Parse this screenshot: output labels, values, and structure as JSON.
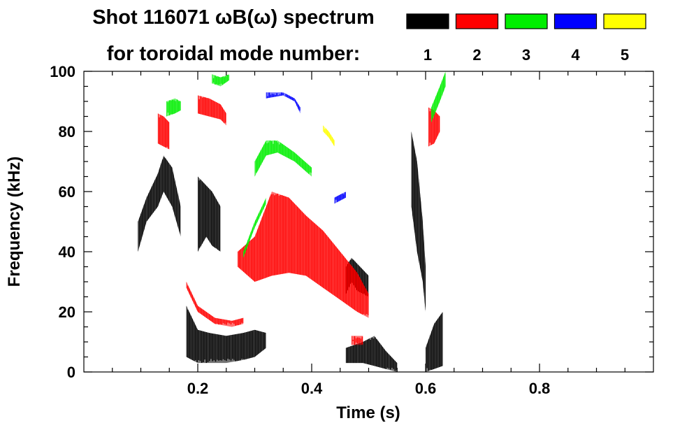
{
  "chart_data": {
    "type": "heatmap",
    "title_line1": "Shot 116071 ωB(ω) spectrum",
    "title_line2": "for toroidal mode number:",
    "xlabel": "Time (s)",
    "ylabel": "Frequency (kHz)",
    "xlim": [
      0.0,
      1.0
    ],
    "ylim": [
      0,
      100
    ],
    "x_ticks": [
      0.2,
      0.4,
      0.6,
      0.8
    ],
    "x_tick_labels": [
      "0.2",
      "0.4",
      "0.6",
      "0.8"
    ],
    "y_ticks": [
      0,
      20,
      40,
      60,
      80,
      100
    ],
    "y_tick_labels": [
      "0",
      "20",
      "40",
      "60",
      "80",
      "100"
    ],
    "x_minor_step": 0.05,
    "y_minor_step": 5,
    "legend": [
      {
        "mode": "1",
        "color": "#000000"
      },
      {
        "mode": "2",
        "color": "#ff0000"
      },
      {
        "mode": "3",
        "color": "#00ee00"
      },
      {
        "mode": "4",
        "color": "#0000ff"
      },
      {
        "mode": "5",
        "color": "#ffff00"
      }
    ],
    "series": [
      {
        "mode": "1",
        "color": "#000000",
        "bands": [
          {
            "t": [
              0.095,
              0.11,
              0.13,
              0.14,
              0.155,
              0.17
            ],
            "f_lo": [
              40,
              50,
              55,
              60,
              55,
              45
            ],
            "f_hi": [
              50,
              58,
              66,
              72,
              68,
              55
            ]
          },
          {
            "t": [
              0.2,
              0.215,
              0.225,
              0.24
            ],
            "f_lo": [
              40,
              45,
              42,
              40
            ],
            "f_hi": [
              65,
              62,
              60,
              55
            ]
          },
          {
            "t": [
              0.18,
              0.2,
              0.22,
              0.25,
              0.28,
              0.3,
              0.32
            ],
            "f_lo": [
              5,
              3,
              3,
              3,
              4,
              5,
              8
            ],
            "f_hi": [
              22,
              14,
              13,
              12,
              13,
              14,
              13
            ]
          },
          {
            "t": [
              0.46,
              0.47,
              0.48,
              0.5
            ],
            "f_lo": [
              26,
              30,
              27,
              25
            ],
            "f_hi": [
              35,
              38,
              36,
              32
            ]
          },
          {
            "t": [
              0.46,
              0.49,
              0.51,
              0.53,
              0.55
            ],
            "f_lo": [
              3,
              3,
              2,
              1,
              0
            ],
            "f_hi": [
              8,
              10,
              12,
              7,
              3
            ]
          },
          {
            "t": [
              0.575,
              0.585,
              0.595,
              0.6
            ],
            "f_lo": [
              55,
              40,
              30,
              20
            ],
            "f_hi": [
              80,
              70,
              50,
              35
            ]
          },
          {
            "t": [
              0.6,
              0.615,
              0.63
            ],
            "f_lo": [
              0,
              1,
              2
            ],
            "f_hi": [
              8,
              16,
              20
            ]
          }
        ]
      },
      {
        "mode": "2",
        "color": "#ff0000",
        "bands": [
          {
            "t": [
              0.13,
              0.14,
              0.15
            ],
            "f_lo": [
              76,
              75,
              74
            ],
            "f_hi": [
              86,
              85,
              83
            ]
          },
          {
            "t": [
              0.2,
              0.22,
              0.24,
              0.25
            ],
            "f_lo": [
              86,
              85,
              84,
              82
            ],
            "f_hi": [
              92,
              91,
              89,
              86
            ]
          },
          {
            "t": [
              0.18,
              0.2,
              0.23,
              0.26,
              0.28
            ],
            "f_lo": [
              28,
              20,
              16,
              15,
              16
            ],
            "f_hi": [
              30,
              22,
              18,
              17,
              18
            ]
          },
          {
            "t": [
              0.27,
              0.3,
              0.33,
              0.36,
              0.39,
              0.42,
              0.45,
              0.48,
              0.5
            ],
            "f_lo": [
              35,
              30,
              32,
              33,
              32,
              28,
              24,
              20,
              18
            ],
            "f_hi": [
              40,
              45,
              60,
              58,
              52,
              47,
              40,
              33,
              26
            ]
          },
          {
            "t": [
              0.47,
              0.48,
              0.49
            ],
            "f_lo": [
              9,
              9,
              9
            ],
            "f_hi": [
              12,
              12,
              12
            ]
          },
          {
            "t": [
              0.605,
              0.615,
              0.625
            ],
            "f_lo": [
              75,
              76,
              80
            ],
            "f_hi": [
              88,
              87,
              85
            ]
          }
        ]
      },
      {
        "mode": "3",
        "color": "#00ee00",
        "bands": [
          {
            "t": [
              0.145,
              0.16,
              0.17
            ],
            "f_lo": [
              85,
              86,
              87
            ],
            "f_hi": [
              90,
              91,
              90
            ]
          },
          {
            "t": [
              0.225,
              0.24,
              0.255
            ],
            "f_lo": [
              96,
              95,
              97
            ],
            "f_hi": [
              99,
              98,
              99
            ]
          },
          {
            "t": [
              0.3,
              0.32,
              0.34,
              0.37,
              0.4
            ],
            "f_lo": [
              65,
              72,
              73,
              70,
              65
            ],
            "f_hi": [
              70,
              77,
              77,
              73,
              68
            ]
          },
          {
            "t": [
              0.28,
              0.3,
              0.32
            ],
            "f_lo": [
              38,
              48,
              56
            ],
            "f_hi": [
              40,
              50,
              58
            ]
          },
          {
            "t": [
              0.61,
              0.625,
              0.635
            ],
            "f_lo": [
              83,
              90,
              95
            ],
            "f_hi": [
              88,
              95,
              100
            ]
          }
        ]
      },
      {
        "mode": "4",
        "color": "#0000ff",
        "bands": [
          {
            "t": [
              0.32,
              0.35,
              0.37,
              0.38
            ],
            "f_lo": [
              91,
              92,
              90,
              86
            ],
            "f_hi": [
              93,
              93,
              91,
              88
            ]
          },
          {
            "t": [
              0.44,
              0.46
            ],
            "f_lo": [
              56,
              58
            ],
            "f_hi": [
              58,
              60
            ]
          }
        ]
      },
      {
        "mode": "5",
        "color": "#ffff00",
        "bands": [
          {
            "t": [
              0.42,
              0.43,
              0.44
            ],
            "f_lo": [
              80,
              78,
              75
            ],
            "f_hi": [
              82,
              80,
              77
            ]
          }
        ]
      }
    ]
  }
}
